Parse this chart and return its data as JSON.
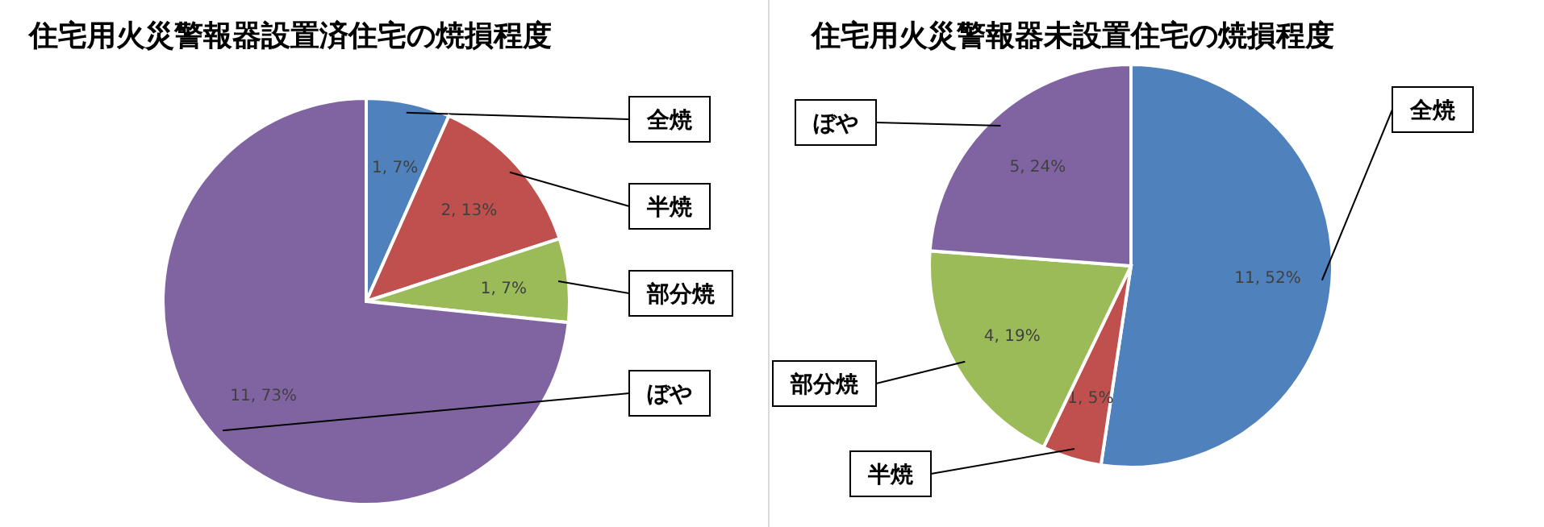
{
  "chart_data": [
    {
      "type": "pie",
      "title": "住宅用火災警報器設置済住宅の焼損程度",
      "categories": [
        "全焼",
        "半焼",
        "部分焼",
        "ぼや"
      ],
      "values": [
        1,
        2,
        1,
        11
      ],
      "colors": [
        "#4f81bd",
        "#c0504d",
        "#9bbb59",
        "#8064a2"
      ],
      "value_labels": [
        "1, 7%",
        "2, 13%",
        "1, 7%",
        "11, 73%"
      ]
    },
    {
      "type": "pie",
      "title": "住宅用火災警報器未設置住宅の焼損程度",
      "categories": [
        "全焼",
        "半焼",
        "部分焼",
        "ぼや"
      ],
      "values": [
        11,
        1,
        4,
        5
      ],
      "colors": [
        "#4f81bd",
        "#c0504d",
        "#9bbb59",
        "#8064a2"
      ],
      "value_labels": [
        "11, 52%",
        "1, 5%",
        "4, 19%",
        "5, 24%"
      ]
    }
  ]
}
